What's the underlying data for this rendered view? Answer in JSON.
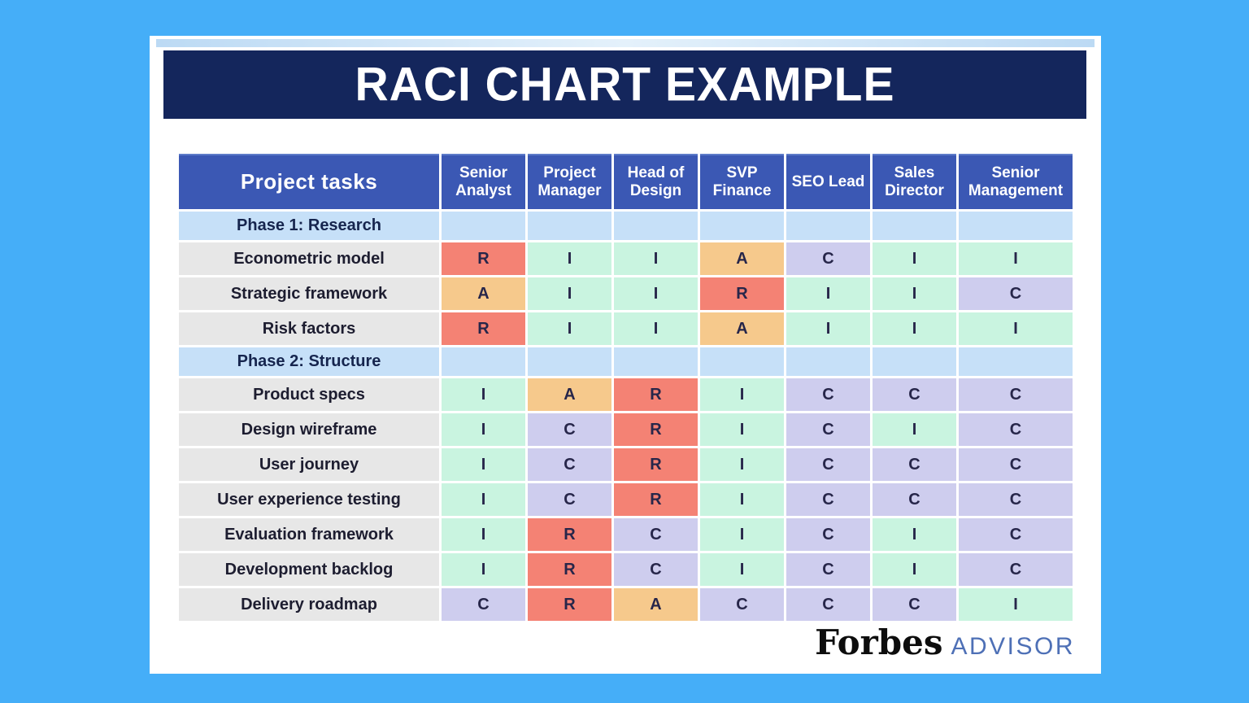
{
  "title": "RACI CHART EXAMPLE",
  "footer": {
    "brand": "Forbes",
    "suffix": "ADVISOR"
  },
  "colors": {
    "page_background": "#45AEF8",
    "card": "#FFFFFF",
    "title_bar": "#14265C",
    "column_header": "#3B58B4",
    "phase_row": "#C6E0F8",
    "task_label": "#E7E7E7",
    "letter_text": "#27264A"
  },
  "cell_colors": {
    "R": "#F48274",
    "A": "#F6C98C",
    "C": "#CECDEE",
    "I": "#C9F4E0"
  },
  "chart_data": {
    "type": "table",
    "title": "RACI CHART EXAMPLE",
    "columns": [
      "Project tasks",
      "Senior Analyst",
      "Project Manager",
      "Head of Design",
      "SVP Finance",
      "SEO Lead",
      "Sales Director",
      "Senior Management"
    ],
    "rows": [
      {
        "kind": "phase",
        "label": "Phase 1: Research",
        "values": [
          "",
          "",
          "",
          "",
          "",
          "",
          ""
        ]
      },
      {
        "kind": "task",
        "label": "Econometric model",
        "values": [
          "R",
          "I",
          "I",
          "A",
          "C",
          "I",
          "I"
        ]
      },
      {
        "kind": "task",
        "label": "Strategic framework",
        "values": [
          "A",
          "I",
          "I",
          "R",
          "I",
          "I",
          "C"
        ]
      },
      {
        "kind": "task",
        "label": "Risk factors",
        "values": [
          "R",
          "I",
          "I",
          "A",
          "I",
          "I",
          "I"
        ]
      },
      {
        "kind": "phase",
        "label": "Phase 2: Structure",
        "values": [
          "",
          "",
          "",
          "",
          "",
          "",
          ""
        ]
      },
      {
        "kind": "task",
        "label": "Product specs",
        "values": [
          "I",
          "A",
          "R",
          "I",
          "C",
          "C",
          "C"
        ]
      },
      {
        "kind": "task",
        "label": "Design wireframe",
        "values": [
          "I",
          "C",
          "R",
          "I",
          "C",
          "I",
          "C"
        ]
      },
      {
        "kind": "task",
        "label": "User journey",
        "values": [
          "I",
          "C",
          "R",
          "I",
          "C",
          "C",
          "C"
        ]
      },
      {
        "kind": "task",
        "label": "User experience testing",
        "values": [
          "I",
          "C",
          "R",
          "I",
          "C",
          "C",
          "C"
        ]
      },
      {
        "kind": "task",
        "label": "Evaluation framework",
        "values": [
          "I",
          "R",
          "C",
          "I",
          "C",
          "I",
          "C"
        ]
      },
      {
        "kind": "task",
        "label": "Development backlog",
        "values": [
          "I",
          "R",
          "C",
          "I",
          "C",
          "I",
          "C"
        ]
      },
      {
        "kind": "task",
        "label": "Delivery roadmap",
        "values": [
          "C",
          "R",
          "A",
          "C",
          "C",
          "C",
          "I"
        ]
      }
    ]
  }
}
